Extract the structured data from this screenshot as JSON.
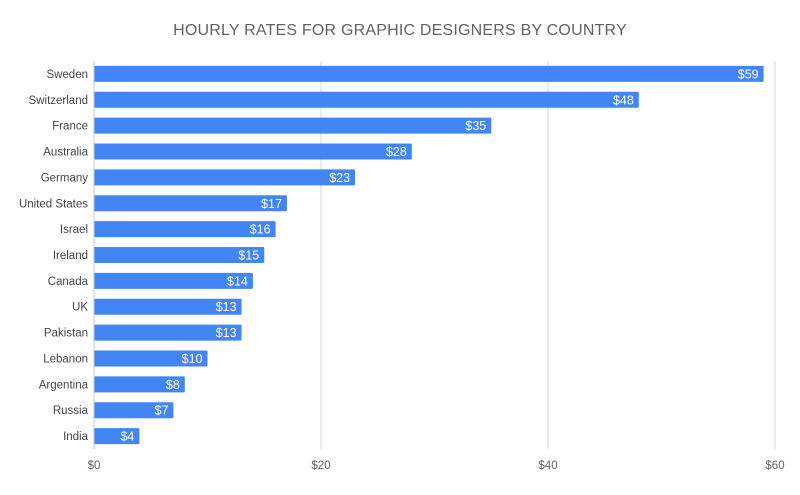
{
  "chart_data": {
    "type": "bar",
    "orientation": "horizontal",
    "title": "HOURLY RATES FOR GRAPHIC DESIGNERS BY COUNTRY",
    "xlabel": "",
    "ylabel": "",
    "categories": [
      "Sweden",
      "Switzerland",
      "France",
      "Australia",
      "Germany",
      "United States",
      "Israel",
      "Ireland",
      "Canada",
      "UK",
      "Pakistan",
      "Lebanon",
      "Argentina",
      "Russia",
      "India"
    ],
    "values": [
      59,
      48,
      35,
      28,
      23,
      17,
      16,
      15,
      14,
      13,
      13,
      10,
      8,
      7,
      4
    ],
    "value_labels": [
      "$59",
      "$48",
      "$35",
      "$28",
      "$23",
      "$17",
      "$16",
      "$15",
      "$14",
      "$13",
      "$13",
      "$10",
      "$8",
      "$7",
      "$4"
    ],
    "xlim": [
      0,
      60
    ],
    "x_ticks": [
      0,
      20,
      40,
      60
    ],
    "x_tick_labels": [
      "$0",
      "$20",
      "$40",
      "$60"
    ],
    "grid": true,
    "legend": "none",
    "bar_color": "#4285f4",
    "grid_color": "#d9d9d9"
  }
}
